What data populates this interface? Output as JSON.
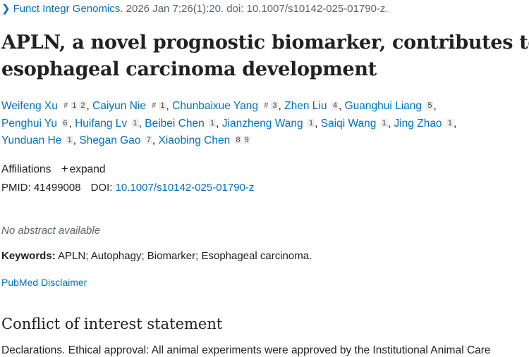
{
  "citation": {
    "journal": "Funct Integr Genomics.",
    "details": "2026 Jan 7;26(1):20. doi: 10.1007/s10142-025-01790-z."
  },
  "title": {
    "line1": "APLN, a novel prognostic biomarker, contributes to",
    "line2": "esophageal carcinoma development"
  },
  "authors": [
    {
      "name": "Weifeng Xu",
      "marks": [
        "#",
        "1",
        "2"
      ]
    },
    {
      "name": "Caiyun Nie",
      "marks": [
        "#",
        "1"
      ]
    },
    {
      "name": "Chunbaixue Yang",
      "marks": [
        "#",
        "3"
      ]
    },
    {
      "name": "Zhen Liu",
      "marks": [
        "4"
      ]
    },
    {
      "name": "Guanghui Liang",
      "marks": [
        "5"
      ]
    },
    {
      "name": "Penghui Yu",
      "marks": [
        "6"
      ]
    },
    {
      "name": "Huifang Lv",
      "marks": [
        "1"
      ]
    },
    {
      "name": "Beibei Chen",
      "marks": [
        "1"
      ]
    },
    {
      "name": "Jianzheng Wang",
      "marks": [
        "1"
      ]
    },
    {
      "name": "Saiqi Wang",
      "marks": [
        "1"
      ]
    },
    {
      "name": "Jing Zhao",
      "marks": [
        "1"
      ]
    },
    {
      "name": "Yunduan He",
      "marks": [
        "1"
      ]
    },
    {
      "name": "Shegan Gao",
      "marks": [
        "7"
      ]
    },
    {
      "name": "Xiaobing Chen",
      "marks": [
        "8",
        "9"
      ]
    }
  ],
  "affiliations": {
    "label": "Affiliations",
    "expand_icon": "+",
    "expand": "expand"
  },
  "ids": {
    "pmid": "PMID: 41499008",
    "doi_label": "DOI:",
    "doi": "10.1007/s10142-025-01790-z"
  },
  "abstract": "No abstract available",
  "keywords": {
    "label": "Keywords:",
    "value": "APLN; Autophagy; Biomarker; Esophageal carcinoma."
  },
  "disclaimer": "PubMed Disclaimer",
  "conflict": {
    "heading": "Conflict of interest statement",
    "text": "Declarations. Ethical approval: All animal experiments were approved by the Institutional Animal Care"
  },
  "colors": {
    "link": "#0071bc",
    "text": "#212121"
  }
}
